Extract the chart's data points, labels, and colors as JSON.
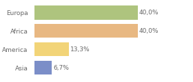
{
  "categories": [
    "Europa",
    "Africa",
    "America",
    "Asia"
  ],
  "values": [
    40.0,
    40.0,
    13.3,
    6.7
  ],
  "labels": [
    "40,0%",
    "40,0%",
    "13,3%",
    "6,7%"
  ],
  "bar_colors": [
    "#aec47e",
    "#e8b882",
    "#f2d478",
    "#7b8ec8"
  ],
  "background_color": "#ffffff",
  "xlim": [
    0,
    48
  ],
  "label_fontsize": 6.5,
  "cat_fontsize": 6.5,
  "text_color": "#666666"
}
